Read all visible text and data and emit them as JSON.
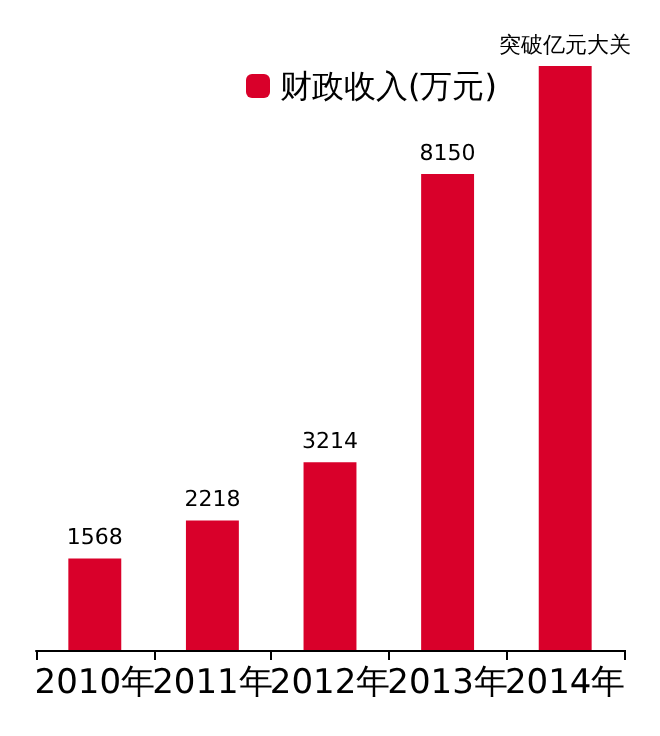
{
  "chart_data": {
    "type": "bar",
    "categories": [
      "2010年",
      "2011年",
      "2012年",
      "2013年",
      "2014年"
    ],
    "series": [
      {
        "name": "财政收入(万元)",
        "color": "#d9002a",
        "values": [
          1568,
          2218,
          3214,
          8150,
          10000
        ],
        "value_labels": [
          "1568",
          "2218",
          "3214",
          "8150",
          "突破亿元大关"
        ]
      }
    ],
    "legend": "top",
    "grid": false
  }
}
